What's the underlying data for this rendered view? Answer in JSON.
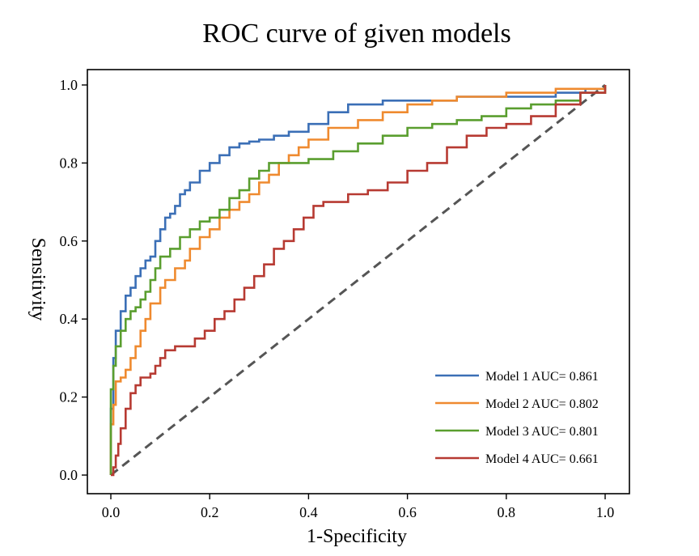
{
  "chart_data": {
    "type": "line",
    "title": "ROC curve of given models",
    "xlabel": "1-Specificity",
    "ylabel": "Sensitivity",
    "xlim": [
      0,
      1
    ],
    "ylim": [
      0,
      1
    ],
    "xticks": [
      "0.0",
      "0.2",
      "0.4",
      "0.6",
      "0.8",
      "1.0"
    ],
    "yticks": [
      "0.0",
      "0.2",
      "0.4",
      "0.6",
      "0.8",
      "1.0"
    ],
    "grid": false,
    "legend_position": "bottom-right",
    "reference_line": {
      "x": [
        0,
        1
      ],
      "y": [
        0,
        1
      ],
      "color": "#555555",
      "style": "dashed"
    },
    "series": [
      {
        "name": "Model 1 AUC= 0.861",
        "color": "#3b6fb6",
        "x": [
          0,
          0,
          0.005,
          0.005,
          0.01,
          0.01,
          0.02,
          0.02,
          0.03,
          0.03,
          0.04,
          0.05,
          0.05,
          0.06,
          0.07,
          0.08,
          0.09,
          0.1,
          0.11,
          0.12,
          0.13,
          0.14,
          0.15,
          0.16,
          0.18,
          0.2,
          0.22,
          0.24,
          0.26,
          0.28,
          0.3,
          0.33,
          0.36,
          0.4,
          0.44,
          0.48,
          0.55,
          0.62,
          0.7,
          0.8,
          0.9,
          0.96,
          1.0
        ],
        "y": [
          0,
          0.17,
          0.23,
          0.3,
          0.34,
          0.37,
          0.38,
          0.42,
          0.45,
          0.46,
          0.48,
          0.49,
          0.51,
          0.53,
          0.55,
          0.56,
          0.6,
          0.63,
          0.66,
          0.67,
          0.69,
          0.72,
          0.73,
          0.75,
          0.78,
          0.8,
          0.82,
          0.84,
          0.85,
          0.855,
          0.86,
          0.87,
          0.88,
          0.9,
          0.93,
          0.95,
          0.96,
          0.96,
          0.97,
          0.97,
          0.98,
          0.99,
          1.0
        ]
      },
      {
        "name": "Model 2 AUC= 0.802",
        "color": "#ef8a2f",
        "x": [
          0,
          0,
          0.005,
          0.01,
          0.02,
          0.03,
          0.04,
          0.05,
          0.06,
          0.07,
          0.08,
          0.1,
          0.11,
          0.13,
          0.15,
          0.16,
          0.18,
          0.2,
          0.22,
          0.24,
          0.26,
          0.28,
          0.3,
          0.32,
          0.34,
          0.36,
          0.38,
          0.4,
          0.44,
          0.5,
          0.55,
          0.6,
          0.65,
          0.7,
          0.8,
          0.9,
          1.0
        ],
        "y": [
          0,
          0.13,
          0.18,
          0.24,
          0.25,
          0.27,
          0.3,
          0.33,
          0.37,
          0.4,
          0.44,
          0.48,
          0.5,
          0.53,
          0.55,
          0.58,
          0.61,
          0.63,
          0.66,
          0.68,
          0.7,
          0.72,
          0.75,
          0.77,
          0.8,
          0.82,
          0.84,
          0.86,
          0.89,
          0.91,
          0.93,
          0.95,
          0.96,
          0.97,
          0.98,
          0.99,
          1.0
        ]
      },
      {
        "name": "Model 3 AUC= 0.801",
        "color": "#5a9e2f",
        "x": [
          0,
          0,
          0.005,
          0.01,
          0.02,
          0.03,
          0.04,
          0.05,
          0.06,
          0.07,
          0.08,
          0.09,
          0.1,
          0.12,
          0.14,
          0.16,
          0.18,
          0.2,
          0.22,
          0.24,
          0.26,
          0.28,
          0.3,
          0.32,
          0.35,
          0.4,
          0.45,
          0.5,
          0.55,
          0.6,
          0.65,
          0.7,
          0.75,
          0.8,
          0.85,
          0.9,
          0.95,
          1.0
        ],
        "y": [
          0,
          0.22,
          0.28,
          0.33,
          0.37,
          0.4,
          0.42,
          0.43,
          0.45,
          0.47,
          0.5,
          0.53,
          0.56,
          0.58,
          0.61,
          0.63,
          0.65,
          0.66,
          0.68,
          0.71,
          0.73,
          0.76,
          0.78,
          0.8,
          0.8,
          0.81,
          0.83,
          0.85,
          0.87,
          0.89,
          0.9,
          0.91,
          0.92,
          0.94,
          0.95,
          0.96,
          0.98,
          1.0
        ]
      },
      {
        "name": "Model 4 AUC= 0.661",
        "color": "#b73a32",
        "x": [
          0,
          0.005,
          0.01,
          0.015,
          0.02,
          0.03,
          0.04,
          0.05,
          0.06,
          0.08,
          0.09,
          0.1,
          0.11,
          0.12,
          0.13,
          0.15,
          0.17,
          0.19,
          0.21,
          0.23,
          0.25,
          0.27,
          0.29,
          0.31,
          0.33,
          0.35,
          0.37,
          0.39,
          0.41,
          0.43,
          0.45,
          0.48,
          0.52,
          0.56,
          0.6,
          0.64,
          0.68,
          0.72,
          0.76,
          0.8,
          0.85,
          0.9,
          0.95,
          1.0
        ],
        "y": [
          0,
          0.02,
          0.05,
          0.08,
          0.12,
          0.17,
          0.21,
          0.23,
          0.25,
          0.26,
          0.28,
          0.3,
          0.32,
          0.32,
          0.33,
          0.33,
          0.35,
          0.37,
          0.4,
          0.42,
          0.45,
          0.48,
          0.51,
          0.54,
          0.58,
          0.6,
          0.63,
          0.66,
          0.69,
          0.7,
          0.7,
          0.72,
          0.73,
          0.75,
          0.78,
          0.8,
          0.84,
          0.87,
          0.89,
          0.9,
          0.92,
          0.95,
          0.98,
          1.0
        ]
      }
    ]
  }
}
